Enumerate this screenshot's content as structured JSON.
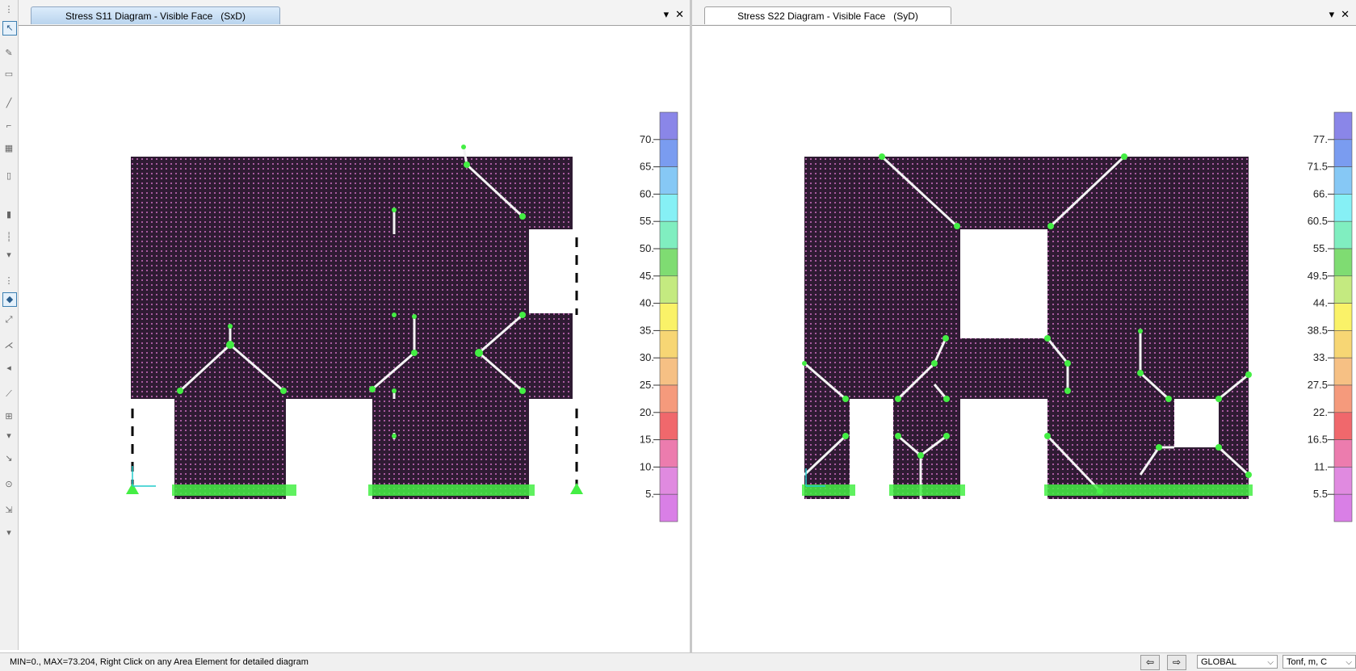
{
  "left_pane": {
    "tab_title": "Stress S11 Diagram - Visible Face   (SxD)",
    "dropdown_glyph": "▾",
    "close_glyph": "✕",
    "legend": {
      "ticks": [
        "70.",
        "65.",
        "60.",
        "55.",
        "50.",
        "45.",
        "40.",
        "35.",
        "30.",
        "25.",
        "20.",
        "15.",
        "10.",
        "5."
      ]
    }
  },
  "right_pane": {
    "tab_title": "Stress S22 Diagram - Visible Face   (SyD)",
    "dropdown_glyph": "▾",
    "close_glyph": "✕",
    "legend": {
      "ticks": [
        "77.",
        "71.5",
        "66.",
        "60.5",
        "55.",
        "49.5",
        "44.",
        "38.5",
        "33.",
        "27.5",
        "22.",
        "16.5",
        "11.",
        "5.5"
      ]
    }
  },
  "legend_colors": [
    "#8a86e8",
    "#7a9cf0",
    "#86c8f5",
    "#86f0f5",
    "#80eec0",
    "#7fdc72",
    "#c4ea80",
    "#faf268",
    "#f7d674",
    "#f6c084",
    "#f59a7c",
    "#f0686c",
    "#ec7cae",
    "#e08ae0",
    "#d97fe6"
  ],
  "mesh_colors": {
    "fill": "#2f1b33",
    "node": "#ff88ee",
    "supports": "#44ee44",
    "cracks": "#f4f4f4",
    "axis": "#22cccc"
  },
  "status_bar": {
    "message": "MIN=0., MAX=73.204, Right Click on any Area Element for detailed diagram",
    "nav_left_glyph": "⇦",
    "nav_right_glyph": "⇨",
    "coord_system": "GLOBAL",
    "units": "Tonf, m, C",
    "dropdown_glyph": "⌵"
  }
}
